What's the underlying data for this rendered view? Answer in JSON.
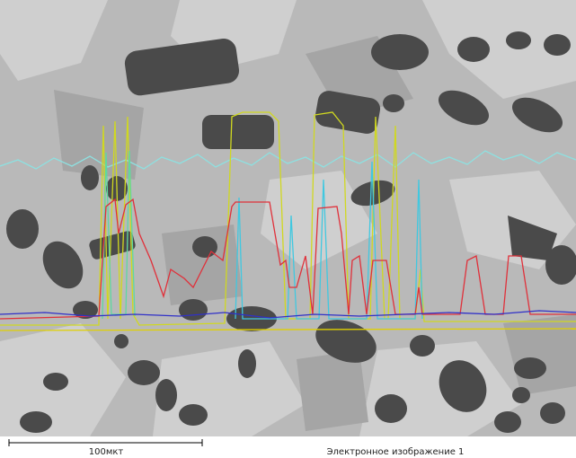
{
  "scale_bar": {
    "label": "100мкт"
  },
  "caption": "Электронное изображение 1"
}
